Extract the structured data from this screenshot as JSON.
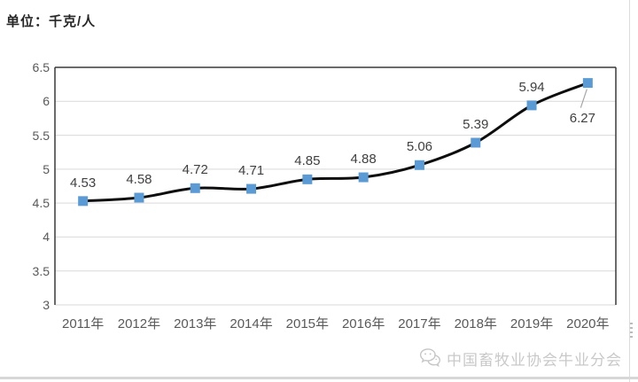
{
  "chart_data": {
    "type": "line",
    "title": "单位：千克/人",
    "categories": [
      "2011年",
      "2012年",
      "2013年",
      "2014年",
      "2015年",
      "2016年",
      "2017年",
      "2018年",
      "2019年",
      "2020年"
    ],
    "values": [
      4.53,
      4.58,
      4.72,
      4.71,
      4.85,
      4.88,
      5.06,
      5.39,
      5.94,
      6.27
    ],
    "data_labels": [
      "4.53",
      "4.58",
      "4.72",
      "4.71",
      "4.85",
      "4.88",
      "5.06",
      "5.39",
      "5.94",
      "6.27"
    ],
    "yticks": [
      "6.5",
      "6",
      "5.5",
      "5",
      "4.5",
      "4",
      "3.5",
      "3"
    ],
    "ytick_values": [
      6.5,
      6,
      5.5,
      5,
      4.5,
      4,
      3.5,
      3
    ],
    "ylim": [
      3,
      6.5
    ],
    "grid": true,
    "legend": "none",
    "last_label_below": true,
    "line_color": "#0d0d0d",
    "marker_color": "#5b9bd5",
    "gridline_color": "#d9d9d9",
    "border_color": "#3a3a3a",
    "leader_color": "#a6a6a6",
    "axis_text_color": "#595959",
    "label_text_color": "#404040"
  },
  "watermark": {
    "icon": "wechat-icon",
    "text": "中国畜牧业协会牛业分会"
  }
}
